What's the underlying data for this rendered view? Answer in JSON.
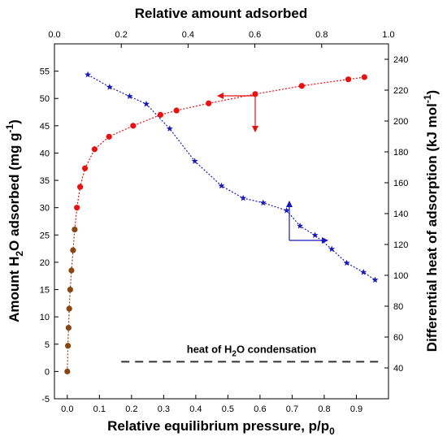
{
  "chart_data": {
    "type": "scatter",
    "axes": {
      "x_bottom": {
        "label": "Relative equilibrium pressure, p/p",
        "label_sub": "0",
        "range": [
          -0.04,
          1.0
        ],
        "ticks": [
          0.0,
          0.1,
          0.2,
          0.3,
          0.4,
          0.5,
          0.6,
          0.7,
          0.8,
          0.9
        ],
        "tick_labels": [
          "0.0",
          "0.1",
          "0.2",
          "0.3",
          "0.4",
          "0.5",
          "0.6",
          "0.7",
          "0.8",
          "0.9"
        ]
      },
      "x_top": {
        "label": "Relative amount adsorbed",
        "range": [
          0.0,
          1.0
        ],
        "ticks": [
          0.0,
          0.2,
          0.4,
          0.6,
          0.8,
          1.0
        ],
        "tick_labels": [
          "0.0",
          "0.2",
          "0.4",
          "0.6",
          "0.8",
          "1.0"
        ]
      },
      "y_left": {
        "label_parts": [
          "Amount H",
          "2",
          "O adsorbed (mg g",
          "-1",
          ")"
        ],
        "range": [
          -5,
          60
        ],
        "ticks": [
          -5,
          0,
          5,
          10,
          15,
          20,
          25,
          30,
          35,
          40,
          45,
          50,
          55
        ],
        "tick_labels": [
          "-5",
          "0",
          "5",
          "10",
          "15",
          "20",
          "25",
          "30",
          "35",
          "40",
          "45",
          "50",
          "55"
        ]
      },
      "y_right": {
        "label_parts": [
          "Differential heat of adsorption (kJ mol",
          "-1",
          ")"
        ],
        "range": [
          20,
          250
        ],
        "ticks": [
          40,
          60,
          80,
          100,
          120,
          140,
          160,
          180,
          200,
          220,
          240
        ],
        "tick_labels": [
          "40",
          "60",
          "80",
          "100",
          "120",
          "140",
          "160",
          "180",
          "200",
          "220",
          "240"
        ]
      }
    },
    "series": [
      {
        "axis": "bottom-left",
        "marker": "circle",
        "color": "#8b4513",
        "points": [
          [
            0.0,
            0.0
          ],
          [
            0.002,
            4.7
          ],
          [
            0.004,
            8.0
          ],
          [
            0.006,
            11.5
          ],
          [
            0.009,
            15.0
          ],
          [
            0.013,
            18.5
          ],
          [
            0.018,
            22.2
          ],
          [
            0.023,
            26.0
          ]
        ]
      },
      {
        "axis": "bottom-left",
        "marker": "circle",
        "color": "#e81010",
        "points": [
          [
            0.03,
            30.0
          ],
          [
            0.04,
            33.8
          ],
          [
            0.055,
            37.2
          ],
          [
            0.085,
            40.7
          ],
          [
            0.13,
            43.0
          ],
          [
            0.205,
            45.0
          ],
          [
            0.29,
            47.0
          ],
          [
            0.34,
            47.8
          ],
          [
            0.44,
            49.1
          ],
          [
            0.585,
            50.8
          ],
          [
            0.73,
            52.3
          ],
          [
            0.875,
            53.5
          ],
          [
            0.925,
            53.9
          ]
        ]
      },
      {
        "axis": "top-right",
        "marker": "star",
        "color": "#1a1ab8",
        "points": [
          [
            0.1,
            230
          ],
          [
            0.165,
            222
          ],
          [
            0.225,
            216
          ],
          [
            0.275,
            211
          ],
          [
            0.345,
            195
          ],
          [
            0.42,
            174
          ],
          [
            0.5,
            158
          ],
          [
            0.565,
            150
          ],
          [
            0.625,
            147
          ],
          [
            0.695,
            142
          ],
          [
            0.735,
            132
          ],
          [
            0.78,
            126
          ],
          [
            0.83,
            117
          ],
          [
            0.875,
            108
          ],
          [
            0.925,
            102
          ],
          [
            0.96,
            97
          ]
        ]
      }
    ],
    "annotations": {
      "reference_line": {
        "label_parts": [
          "heat of H",
          "2",
          "O condensation"
        ],
        "y_right": 44,
        "x_top_range": [
          0.2,
          0.98
        ],
        "style": "dashed"
      }
    }
  }
}
